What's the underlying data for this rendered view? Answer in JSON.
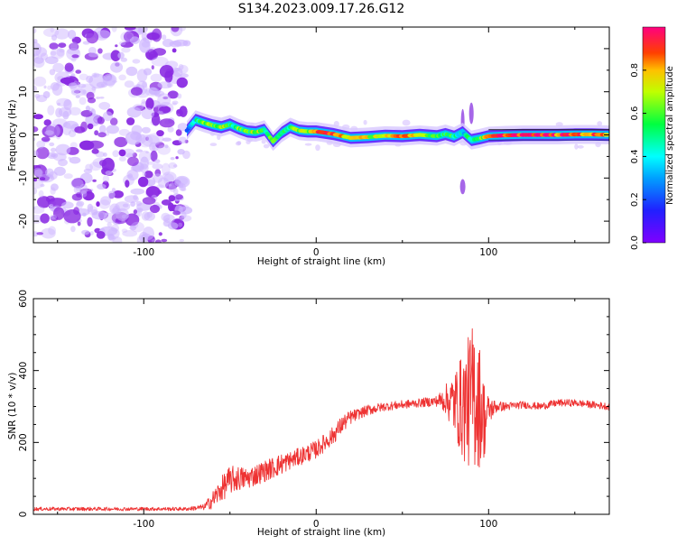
{
  "title": "S134.2023.009.17.26.G12",
  "colors": {
    "snr_line": "#ee3333",
    "low_amp": "#d8c8ff",
    "mid_amp": "#8a2be2"
  },
  "chart_data": [
    {
      "type": "heatmap",
      "xlabel": "Height of straight line (km)",
      "ylabel": "Frequency (Hz)",
      "xlim": [
        -164,
        170
      ],
      "ylim": [
        -25,
        25
      ],
      "xticks": [
        -100,
        0,
        100
      ],
      "xtick_labels": [
        "-100",
        "0",
        "100"
      ],
      "yticks": [
        -20,
        -10,
        0,
        10,
        20
      ],
      "ytick_labels": [
        "-20",
        "-10",
        "0",
        "10",
        "20"
      ],
      "colorbar": {
        "label": "Normalized spectral amplitude",
        "range": [
          0,
          1
        ],
        "ticks": [
          0,
          0.2,
          0.4,
          0.6,
          0.8
        ],
        "tick_labels": [
          "0.0",
          "0.2",
          "0.4",
          "0.6",
          "0.8"
        ],
        "colormap": "rainbow (purple-blue-cyan-green-yellow-red-magenta)"
      },
      "ridge": {
        "x": [
          -75,
          -70,
          -65,
          -60,
          -55,
          -50,
          -45,
          -40,
          -35,
          -30,
          -25,
          -20,
          -15,
          -10,
          -5,
          0,
          10,
          20,
          30,
          40,
          50,
          60,
          70,
          75,
          80,
          85,
          90,
          95,
          100,
          110,
          120,
          130,
          140,
          150,
          160,
          170
        ],
        "freq": [
          1,
          3.5,
          2.8,
          2.2,
          1.8,
          2.4,
          1.5,
          0.8,
          0.6,
          1.2,
          -1.5,
          0.5,
          1.8,
          1.0,
          0.8,
          0.8,
          0.2,
          -0.7,
          -0.5,
          -0.2,
          -0.3,
          0.0,
          -0.3,
          0.2,
          -0.4,
          0.6,
          -1.2,
          -0.8,
          -0.3,
          -0.1,
          0.0,
          0.0,
          0.0,
          0.1,
          0.1,
          0.0
        ],
        "amplitude": [
          0.3,
          0.45,
          0.6,
          0.55,
          0.7,
          0.5,
          0.6,
          0.55,
          0.7,
          0.5,
          0.55,
          0.6,
          0.5,
          0.7,
          0.65,
          0.85,
          0.9,
          0.75,
          0.7,
          0.75,
          0.8,
          0.7,
          0.6,
          0.55,
          0.5,
          0.4,
          0.5,
          0.6,
          0.8,
          0.95,
          0.95,
          0.95,
          0.9,
          0.9,
          0.85,
          0.8
        ]
      },
      "noise_region_x": [
        -164,
        -75
      ]
    },
    {
      "type": "line",
      "xlabel": "Height of straight line (km)",
      "ylabel": "SNR (10 * v/v)",
      "xlim": [
        -164,
        170
      ],
      "ylim": [
        0,
        600
      ],
      "xticks": [
        -100,
        0,
        100
      ],
      "xtick_labels": [
        "-100",
        "0",
        "100"
      ],
      "yticks": [
        0,
        200,
        400,
        600
      ],
      "ytick_labels": [
        "0",
        "200",
        "400",
        "600"
      ],
      "series": [
        {
          "x": [
            -164,
            -150,
            -130,
            -110,
            -90,
            -75,
            -65,
            -60,
            -55,
            -50,
            -45,
            -40,
            -35,
            -30,
            -25,
            -20,
            -15,
            -10,
            -5,
            0,
            5,
            10,
            15,
            20,
            25,
            30,
            40,
            50,
            60,
            70,
            75,
            80,
            85,
            90,
            92,
            95,
            98,
            100,
            105,
            110,
            120,
            130,
            140,
            150,
            160,
            170
          ],
          "y": [
            15,
            15,
            15,
            15,
            15,
            15,
            20,
            40,
            70,
            95,
            100,
            100,
            110,
            120,
            130,
            140,
            150,
            160,
            170,
            180,
            200,
            220,
            250,
            270,
            280,
            290,
            300,
            305,
            310,
            315,
            320,
            310,
            300,
            320,
            340,
            300,
            260,
            290,
            300,
            300,
            305,
            300,
            310,
            310,
            305,
            300
          ],
          "spread": [
            5,
            5,
            5,
            5,
            5,
            5,
            8,
            25,
            35,
            40,
            35,
            30,
            30,
            30,
            30,
            30,
            25,
            25,
            25,
            25,
            25,
            25,
            25,
            20,
            15,
            15,
            12,
            12,
            12,
            15,
            40,
            90,
            150,
            200,
            220,
            170,
            100,
            40,
            15,
            12,
            10,
            10,
            10,
            10,
            10,
            10
          ]
        }
      ]
    }
  ]
}
